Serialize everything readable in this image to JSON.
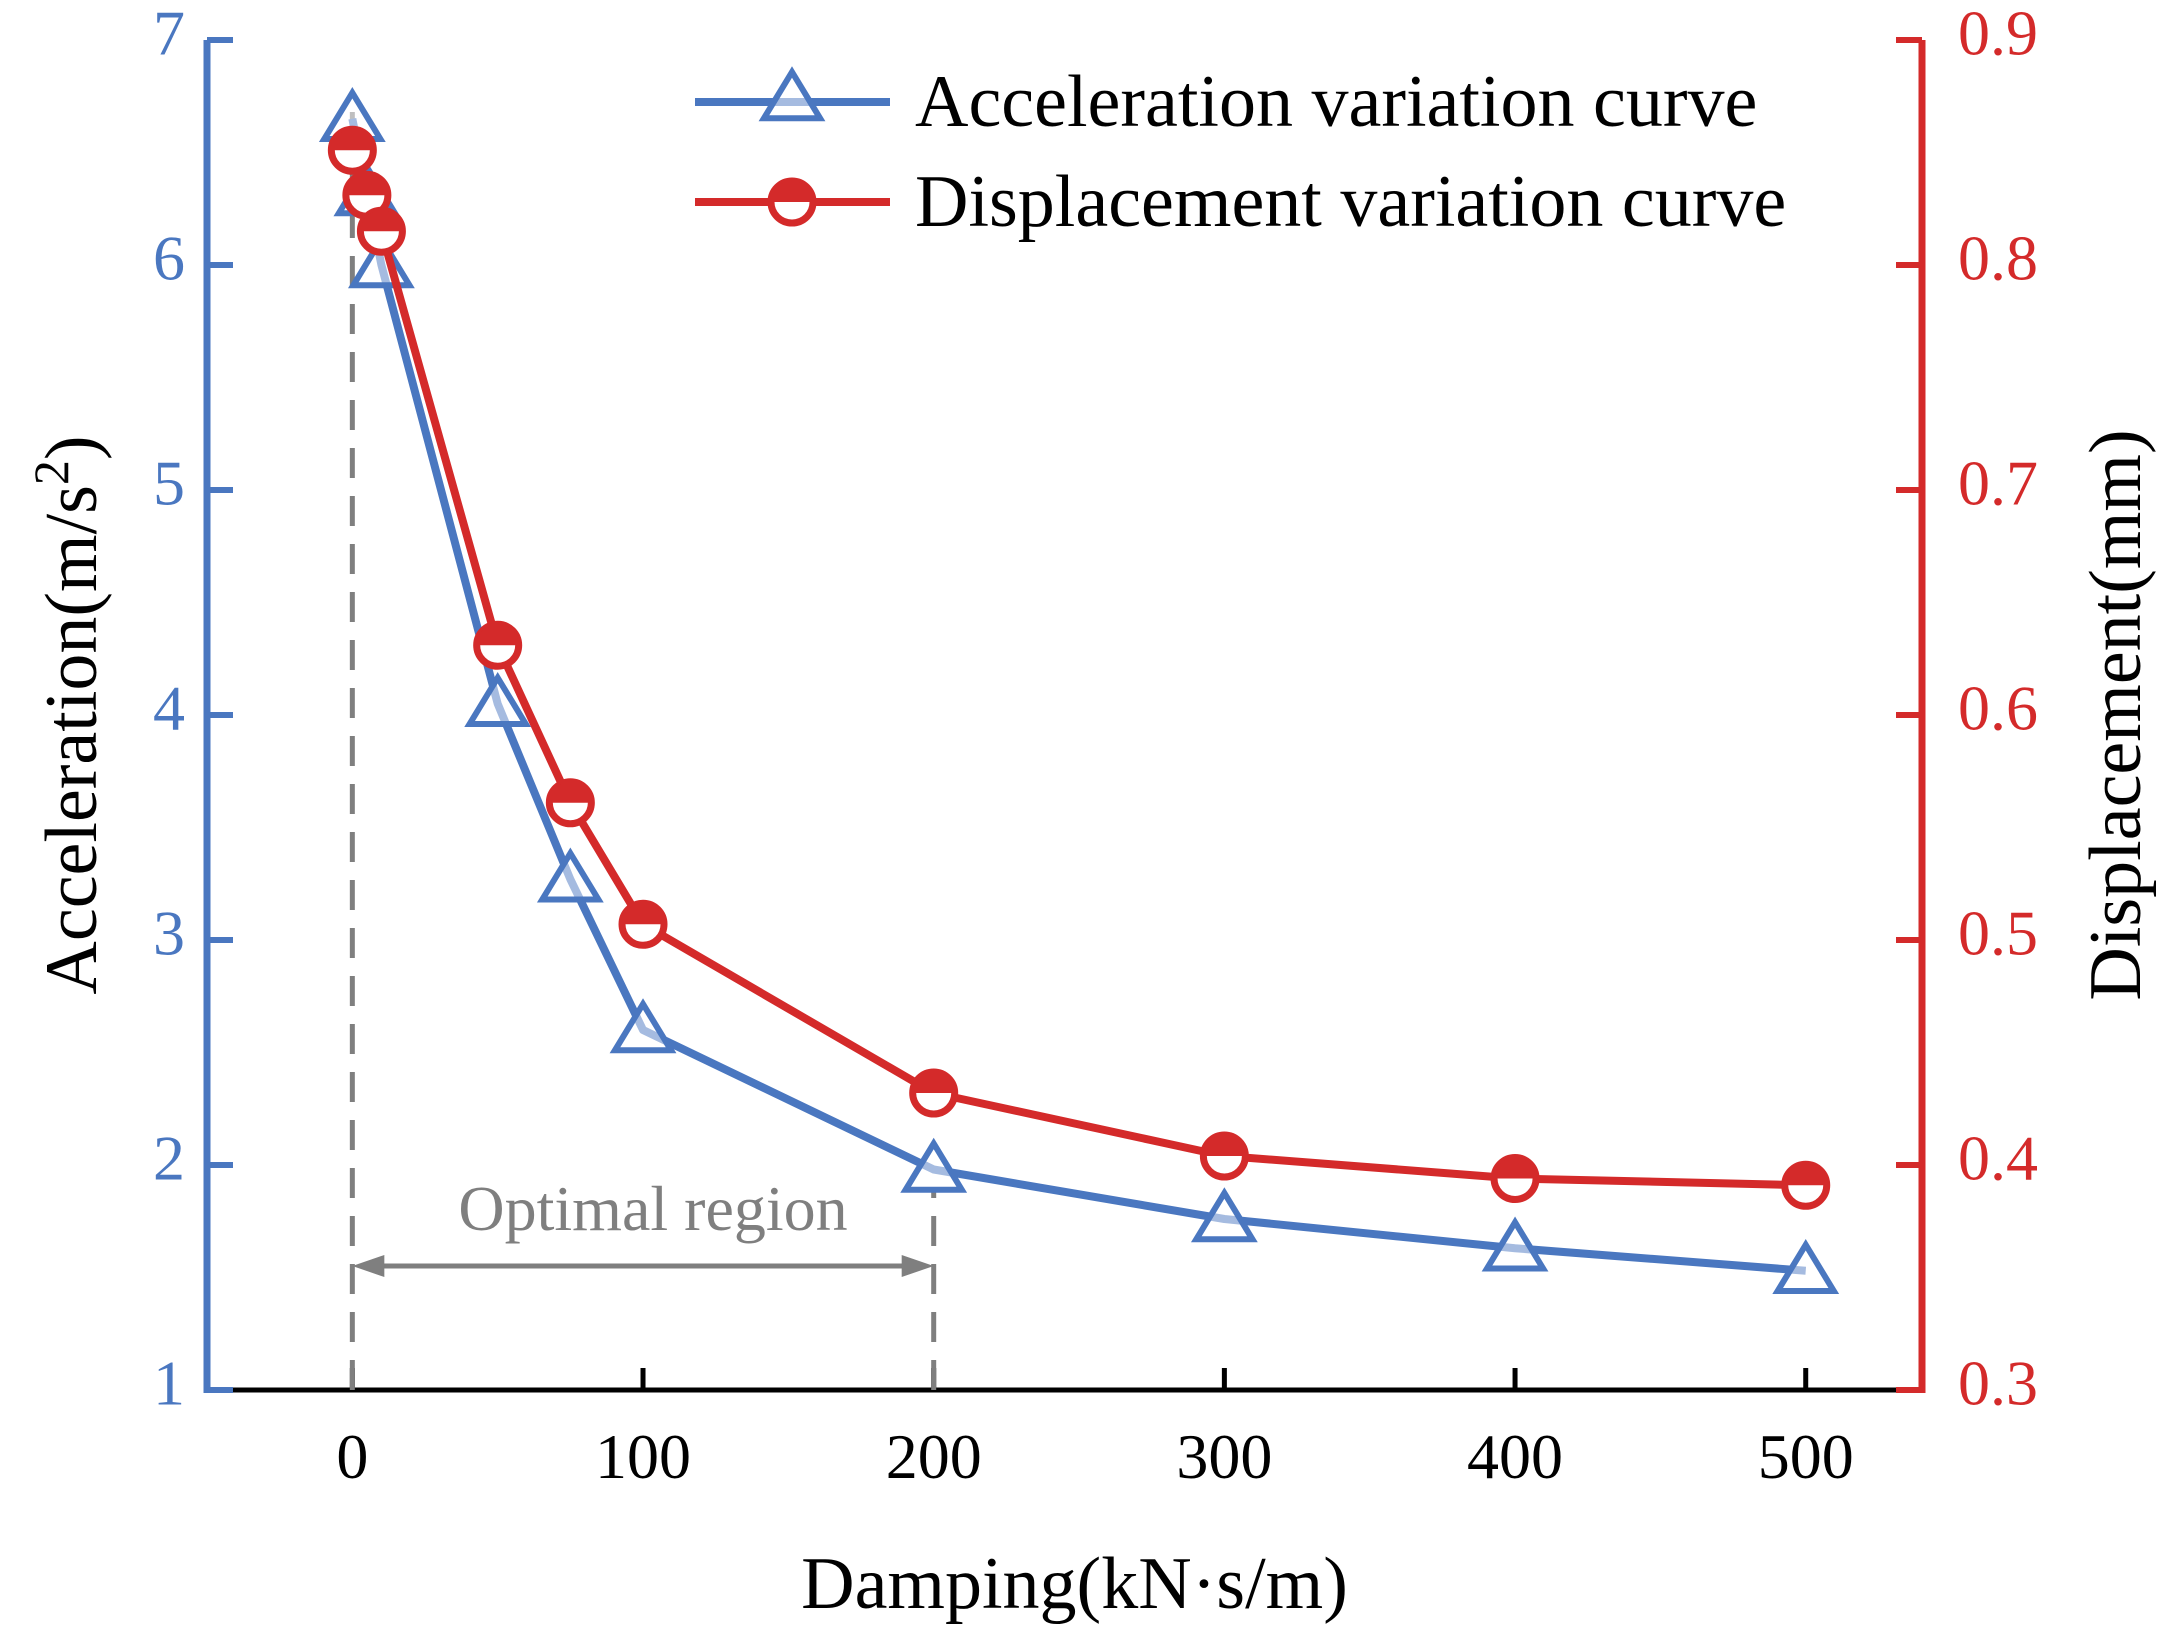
{
  "chart_data": {
    "type": "line",
    "title": "",
    "xlabel": "Damping(kN·s/m)",
    "ylabel_left": {
      "prefix": "Acceleration(m/s",
      "superscript": "2",
      "suffix": ")"
    },
    "ylabel_right": "Displacement(mm)",
    "xlim": [
      -50,
      540
    ],
    "ylim_left": [
      1,
      7
    ],
    "ylim_right": [
      0.3,
      0.9
    ],
    "x_ticks": [
      0,
      100,
      200,
      300,
      400,
      500
    ],
    "x_tick_labels": [
      "0",
      "100",
      "200",
      "300",
      "400",
      "500"
    ],
    "y_left_ticks": [
      1,
      2,
      3,
      4,
      5,
      6,
      7
    ],
    "y_left_tick_labels": [
      "1",
      "2",
      "3",
      "4",
      "5",
      "6",
      "7"
    ],
    "y_right_ticks": [
      0.3,
      0.4,
      0.5,
      0.6,
      0.7,
      0.8,
      0.9
    ],
    "y_right_tick_labels": [
      "0.3",
      "0.4",
      "0.5",
      "0.6",
      "0.7",
      "0.8",
      "0.9"
    ],
    "legend_position": "top-right",
    "series": [
      {
        "name": "Acceleration variation curve",
        "axis": "left",
        "marker": "triangle",
        "color": "#4a77c0",
        "x": [
          0,
          5,
          10,
          50,
          75,
          100,
          200,
          300,
          400,
          500
        ],
        "values": [
          6.65,
          6.32,
          6.0,
          4.05,
          3.27,
          2.6,
          1.98,
          1.76,
          1.63,
          1.53
        ]
      },
      {
        "name": "Displacement variation curve",
        "axis": "right",
        "marker": "circle",
        "color": "#d42a2a",
        "x": [
          0,
          5,
          10,
          50,
          75,
          100,
          200,
          300,
          400,
          500
        ],
        "values": [
          0.851,
          0.831,
          0.815,
          0.631,
          0.561,
          0.507,
          0.432,
          0.404,
          0.394,
          0.391
        ]
      }
    ],
    "annotations": [
      {
        "text": "Optimal region",
        "x_start": 0,
        "x_end": 200
      }
    ]
  }
}
